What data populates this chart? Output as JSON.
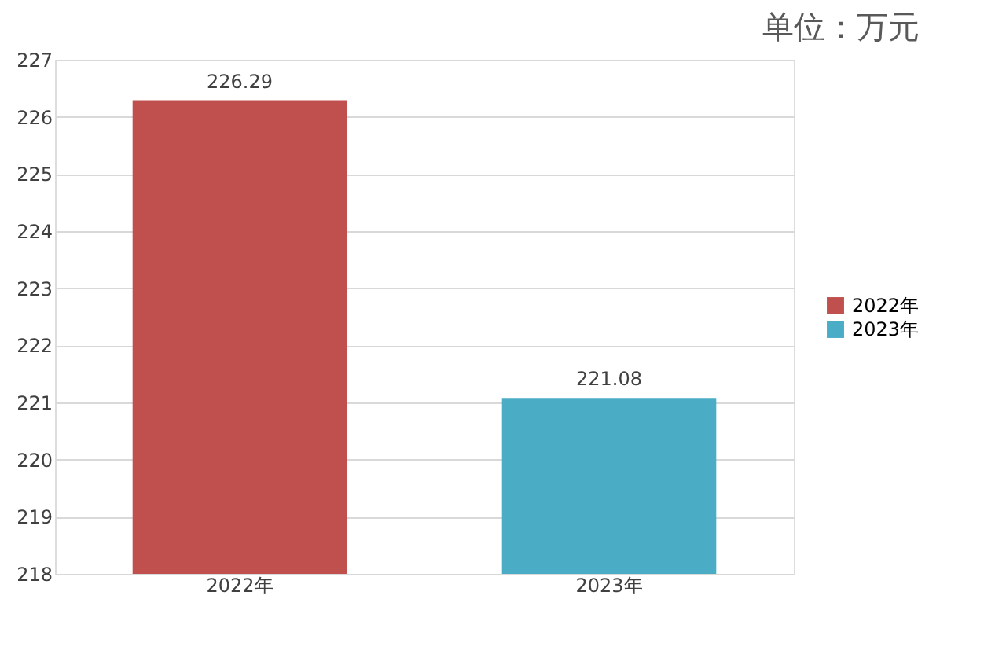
{
  "chart_data": {
    "type": "bar",
    "categories": [
      "2022年",
      "2023年"
    ],
    "series": [
      {
        "name": "2022年",
        "color": "#c0504d",
        "values": [
          226.29,
          null
        ]
      },
      {
        "name": "2023年",
        "color": "#4bacc6",
        "values": [
          null,
          221.08
        ]
      }
    ],
    "ylim": [
      218,
      227
    ],
    "yticks": [
      218,
      219,
      220,
      221,
      222,
      223,
      224,
      225,
      226,
      227
    ],
    "grid": "y",
    "legend": "right",
    "data_labels": true,
    "annotations": [
      "单位：万元"
    ]
  }
}
